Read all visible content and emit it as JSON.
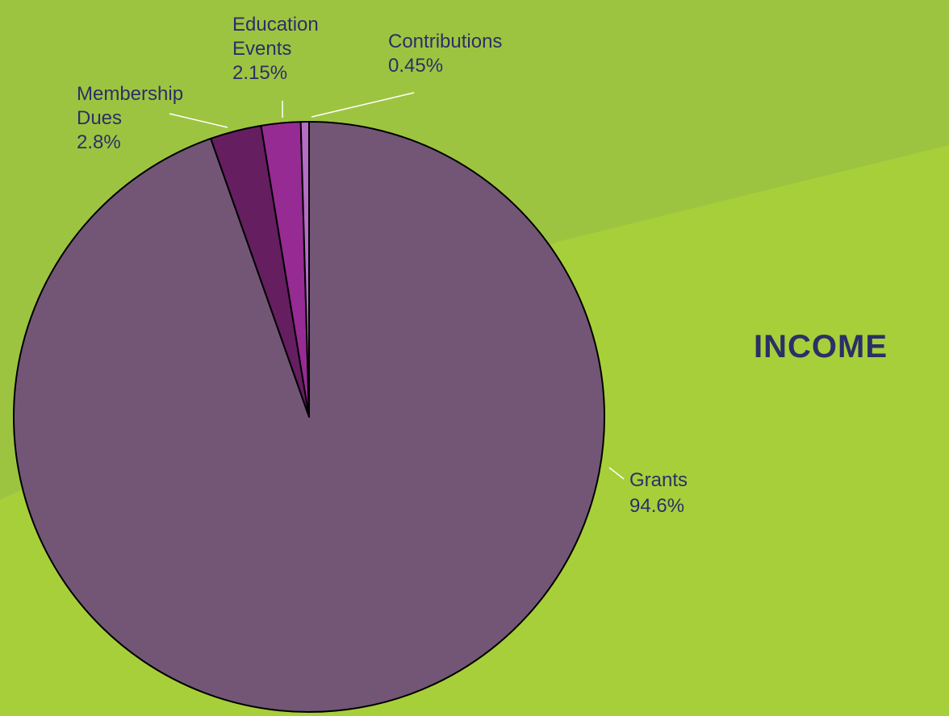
{
  "chart_data": {
    "type": "pie",
    "title": "INCOME",
    "slices": [
      {
        "label_lines": [
          "Grants"
        ],
        "value_label": "94.6%",
        "value": 94.6,
        "color": "#735676"
      },
      {
        "label_lines": [
          "Membership",
          "Dues"
        ],
        "value_label": "2.8%",
        "value": 2.8,
        "color": "#651e60"
      },
      {
        "label_lines": [
          "Education",
          "Events"
        ],
        "value_label": "2.15%",
        "value": 2.15,
        "color": "#962b93"
      },
      {
        "label_lines": [
          "Contributions"
        ],
        "value_label": "0.45%",
        "value": 0.45,
        "color": "#b56dc6"
      }
    ],
    "start": "top",
    "direction": "clockwise-from-largest"
  },
  "colors": {
    "background": "#a7cf3a",
    "background_shade": "#9dc440",
    "text": "#2c2f66",
    "outline": "#000000"
  }
}
